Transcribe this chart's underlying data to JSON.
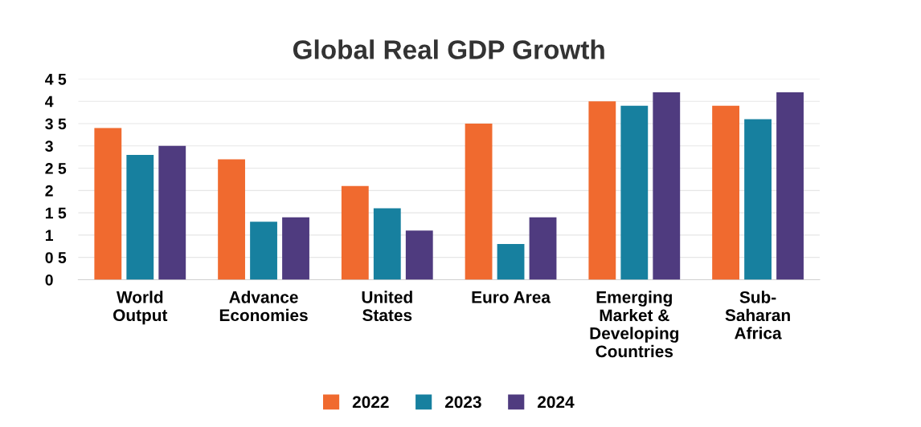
{
  "chart_data": {
    "type": "bar",
    "title": "Global Real GDP Growth",
    "categories": [
      "World\nOutput",
      "Advance\nEconomies",
      "United\nStates",
      "Euro Area",
      "Emerging\nMarket &\nDeveloping\nCountries",
      "Sub-\nSaharan\nAfrica"
    ],
    "series": [
      {
        "name": "2022",
        "color": "#f06a2f",
        "values": [
          3.4,
          2.7,
          2.1,
          3.5,
          4.0,
          3.9
        ]
      },
      {
        "name": "2023",
        "color": "#17809f",
        "values": [
          2.8,
          1.3,
          1.6,
          0.8,
          3.9,
          3.6
        ]
      },
      {
        "name": "2024",
        "color": "#4f3b7f",
        "values": [
          3.0,
          1.4,
          1.1,
          1.4,
          4.2,
          4.2
        ]
      }
    ],
    "ylim": [
      0,
      4.5
    ],
    "yticks": [
      0,
      {
        "value": 0.5,
        "label": "0 5"
      },
      1,
      {
        "value": 1.5,
        "label": "1 5"
      },
      2,
      {
        "value": 2.5,
        "label": "2 5"
      },
      3,
      {
        "value": 3.5,
        "label": "3 5"
      },
      4,
      {
        "value": 4.5,
        "label": "4 5"
      }
    ],
    "grid": "y",
    "legend": "bottom"
  }
}
